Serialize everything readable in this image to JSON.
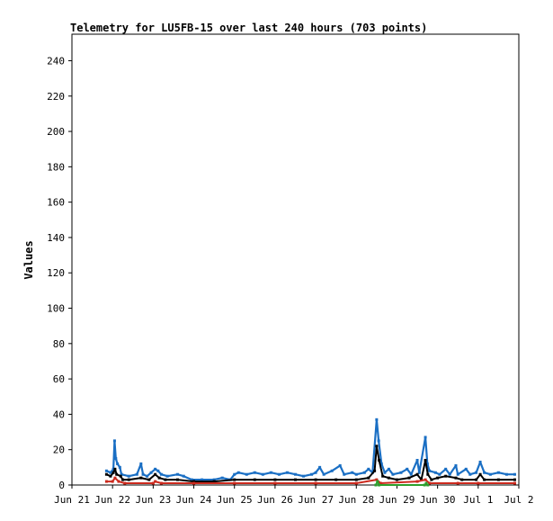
{
  "chart_data": {
    "type": "line",
    "title": "Telemetry for LU5FB-15 over last 240 hours (703 points)",
    "xlabel": "",
    "ylabel": "Values",
    "ylim": [
      0,
      255
    ],
    "yticks": [
      0,
      20,
      40,
      60,
      80,
      100,
      120,
      140,
      160,
      180,
      200,
      220,
      240
    ],
    "xlim": [
      0,
      11
    ],
    "xticks": [
      {
        "x": 0,
        "label": "Jun 21"
      },
      {
        "x": 1,
        "label": "Jun 22"
      },
      {
        "x": 2,
        "label": "Jun 23"
      },
      {
        "x": 3,
        "label": "Jun 24"
      },
      {
        "x": 4,
        "label": "Jun 25"
      },
      {
        "x": 5,
        "label": "Jun 26"
      },
      {
        "x": 6,
        "label": "Jun 27"
      },
      {
        "x": 7,
        "label": "Jun 28"
      },
      {
        "x": 8,
        "label": "Jun 29"
      },
      {
        "x": 9,
        "label": "Jun 30"
      },
      {
        "x": 10,
        "label": "Jul 1"
      },
      {
        "x": 11,
        "label": "Jul 2"
      }
    ],
    "grid": false,
    "series": [
      {
        "color": "#1a6fc4",
        "points": [
          [
            0.85,
            8
          ],
          [
            0.95,
            7
          ],
          [
            1.02,
            9
          ],
          [
            1.05,
            25
          ],
          [
            1.08,
            15
          ],
          [
            1.12,
            12
          ],
          [
            1.18,
            10
          ],
          [
            1.22,
            6
          ],
          [
            1.4,
            5
          ],
          [
            1.6,
            6
          ],
          [
            1.7,
            12
          ],
          [
            1.75,
            6
          ],
          [
            1.85,
            5
          ],
          [
            1.95,
            7
          ],
          [
            2.05,
            9
          ],
          [
            2.12,
            8
          ],
          [
            2.2,
            6
          ],
          [
            2.35,
            5
          ],
          [
            2.6,
            6
          ],
          [
            2.75,
            5
          ],
          [
            2.95,
            3
          ],
          [
            3.2,
            3
          ],
          [
            3.5,
            3
          ],
          [
            3.7,
            4
          ],
          [
            3.9,
            3
          ],
          [
            4.0,
            6
          ],
          [
            4.1,
            7
          ],
          [
            4.3,
            6
          ],
          [
            4.5,
            7
          ],
          [
            4.7,
            6
          ],
          [
            4.9,
            7
          ],
          [
            5.1,
            6
          ],
          [
            5.3,
            7
          ],
          [
            5.5,
            6
          ],
          [
            5.7,
            5
          ],
          [
            5.9,
            6
          ],
          [
            6.0,
            7
          ],
          [
            6.1,
            10
          ],
          [
            6.2,
            6
          ],
          [
            6.4,
            8
          ],
          [
            6.6,
            11
          ],
          [
            6.7,
            6
          ],
          [
            6.9,
            7
          ],
          [
            7.0,
            6
          ],
          [
            7.2,
            7
          ],
          [
            7.3,
            9
          ],
          [
            7.4,
            7
          ],
          [
            7.5,
            37
          ],
          [
            7.55,
            25
          ],
          [
            7.62,
            12
          ],
          [
            7.7,
            7
          ],
          [
            7.8,
            9
          ],
          [
            7.9,
            6
          ],
          [
            8.1,
            7
          ],
          [
            8.25,
            9
          ],
          [
            8.35,
            6
          ],
          [
            8.5,
            14
          ],
          [
            8.55,
            7
          ],
          [
            8.7,
            27
          ],
          [
            8.75,
            12
          ],
          [
            8.8,
            8
          ],
          [
            8.95,
            7
          ],
          [
            9.05,
            6
          ],
          [
            9.2,
            9
          ],
          [
            9.3,
            6
          ],
          [
            9.45,
            11
          ],
          [
            9.5,
            6
          ],
          [
            9.7,
            9
          ],
          [
            9.8,
            6
          ],
          [
            9.95,
            7
          ],
          [
            10.05,
            13
          ],
          [
            10.15,
            7
          ],
          [
            10.3,
            6
          ],
          [
            10.5,
            7
          ],
          [
            10.7,
            6
          ],
          [
            10.9,
            6
          ]
        ]
      },
      {
        "color": "#000000",
        "points": [
          [
            0.85,
            6
          ],
          [
            0.95,
            5
          ],
          [
            1.02,
            7
          ],
          [
            1.06,
            9
          ],
          [
            1.1,
            6
          ],
          [
            1.2,
            5
          ],
          [
            1.25,
            3
          ],
          [
            1.4,
            3
          ],
          [
            1.7,
            4
          ],
          [
            1.9,
            3
          ],
          [
            2.05,
            6
          ],
          [
            2.15,
            4
          ],
          [
            2.3,
            3
          ],
          [
            2.6,
            3
          ],
          [
            3.0,
            2
          ],
          [
            3.5,
            2
          ],
          [
            4.0,
            3
          ],
          [
            4.5,
            3
          ],
          [
            5.0,
            3
          ],
          [
            5.5,
            3
          ],
          [
            6.0,
            3
          ],
          [
            6.5,
            3
          ],
          [
            7.0,
            3
          ],
          [
            7.3,
            4
          ],
          [
            7.45,
            8
          ],
          [
            7.5,
            22
          ],
          [
            7.56,
            14
          ],
          [
            7.65,
            5
          ],
          [
            7.8,
            4
          ],
          [
            8.0,
            3
          ],
          [
            8.3,
            4
          ],
          [
            8.5,
            6
          ],
          [
            8.6,
            3
          ],
          [
            8.7,
            14
          ],
          [
            8.76,
            6
          ],
          [
            8.85,
            3
          ],
          [
            9.0,
            4
          ],
          [
            9.2,
            5
          ],
          [
            9.45,
            4
          ],
          [
            9.6,
            3
          ],
          [
            9.95,
            3
          ],
          [
            10.05,
            6
          ],
          [
            10.15,
            3
          ],
          [
            10.5,
            3
          ],
          [
            10.9,
            3
          ]
        ]
      },
      {
        "color": "#cc2a1e",
        "points": [
          [
            0.85,
            2
          ],
          [
            1.0,
            2
          ],
          [
            1.06,
            4
          ],
          [
            1.15,
            2
          ],
          [
            1.3,
            1
          ],
          [
            2.0,
            1
          ],
          [
            2.05,
            2
          ],
          [
            2.2,
            1
          ],
          [
            3.0,
            1
          ],
          [
            4.0,
            1
          ],
          [
            5.0,
            1
          ],
          [
            6.0,
            1
          ],
          [
            7.0,
            1
          ],
          [
            7.5,
            3
          ],
          [
            7.6,
            1
          ],
          [
            8.5,
            2
          ],
          [
            8.7,
            3
          ],
          [
            8.8,
            1
          ],
          [
            9.5,
            1
          ],
          [
            10.0,
            1
          ],
          [
            10.9,
            1
          ]
        ]
      },
      {
        "color": "#2ca02c",
        "points": [
          [
            7.48,
            0
          ],
          [
            7.52,
            2
          ],
          [
            7.56,
            0
          ],
          [
            8.68,
            0
          ],
          [
            8.72,
            1
          ],
          [
            8.76,
            0
          ]
        ]
      }
    ]
  }
}
